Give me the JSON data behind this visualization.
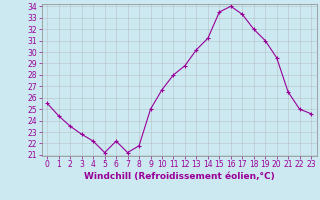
{
  "x": [
    0,
    1,
    2,
    3,
    4,
    5,
    6,
    7,
    8,
    9,
    10,
    11,
    12,
    13,
    14,
    15,
    16,
    17,
    18,
    19,
    20,
    21,
    22,
    23
  ],
  "y": [
    25.5,
    24.4,
    23.5,
    22.8,
    22.2,
    21.2,
    22.2,
    21.2,
    21.8,
    25.0,
    26.7,
    28.0,
    28.8,
    30.2,
    31.2,
    33.5,
    34.0,
    33.3,
    32.0,
    31.0,
    29.5,
    26.5,
    25.0,
    24.6
  ],
  "line_color": "#990099",
  "marker": "+",
  "marker_size": 3,
  "bg_color": "#cce8f0",
  "grid_color": "#aaaaaa",
  "xlabel": "Windchill (Refroidissement éolien,°C)",
  "xlabel_color": "#990099",
  "tick_color": "#990099",
  "ylim": [
    21,
    34
  ],
  "xlim": [
    -0.5,
    23.5
  ],
  "yticks": [
    21,
    22,
    23,
    24,
    25,
    26,
    27,
    28,
    29,
    30,
    31,
    32,
    33,
    34
  ],
  "xticks": [
    0,
    1,
    2,
    3,
    4,
    5,
    6,
    7,
    8,
    9,
    10,
    11,
    12,
    13,
    14,
    15,
    16,
    17,
    18,
    19,
    20,
    21,
    22,
    23
  ],
  "tick_fontsize": 5.5,
  "xlabel_fontsize": 6.5
}
